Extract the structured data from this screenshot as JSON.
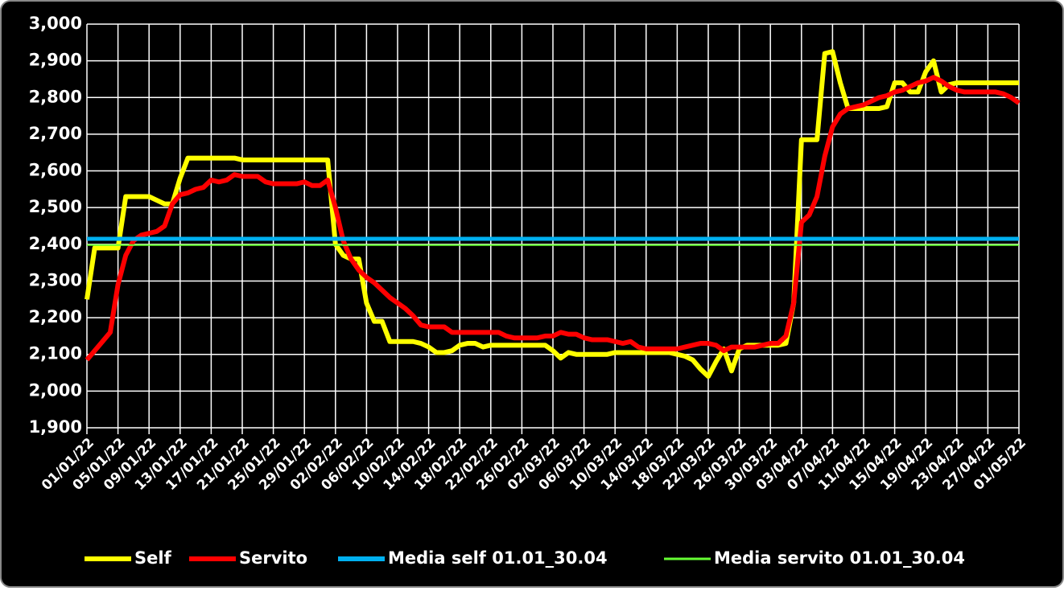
{
  "chart_data": {
    "type": "line",
    "categories": [
      "01/01/22",
      null,
      null,
      null,
      "05/01/22",
      null,
      null,
      null,
      "09/01/22",
      null,
      null,
      null,
      "13/01/22",
      null,
      null,
      null,
      "17/01/22",
      null,
      null,
      null,
      "21/01/22",
      null,
      null,
      null,
      "25/01/22",
      null,
      null,
      null,
      "29/01/22",
      null,
      null,
      null,
      "02/02/22",
      null,
      null,
      null,
      "06/02/22",
      null,
      null,
      null,
      "10/02/22",
      null,
      null,
      null,
      "14/02/22",
      null,
      null,
      null,
      "18/02/22",
      null,
      null,
      null,
      "22/02/22",
      null,
      null,
      null,
      "26/02/22",
      null,
      null,
      null,
      "02/03/22",
      null,
      null,
      null,
      "06/03/22",
      null,
      null,
      null,
      "10/03/22",
      null,
      null,
      null,
      "14/03/22",
      null,
      null,
      null,
      "18/03/22",
      null,
      null,
      null,
      "22/03/22",
      null,
      null,
      null,
      "26/03/22",
      null,
      null,
      null,
      "30/03/22",
      null,
      null,
      null,
      "03/04/22",
      null,
      null,
      null,
      "07/04/22",
      null,
      null,
      null,
      "11/04/22",
      null,
      null,
      null,
      "15/04/22",
      null,
      null,
      null,
      "19/04/22",
      null,
      null,
      null,
      "23/04/22",
      null,
      null,
      null,
      "27/04/22",
      null,
      null,
      null,
      "01/05/22"
    ],
    "series": [
      {
        "name": "Self",
        "color": "#ffff00",
        "values": [
          2.25,
          2.39,
          2.39,
          2.39,
          2.39,
          2.53,
          2.53,
          2.53,
          2.53,
          2.52,
          2.51,
          2.51,
          2.58,
          2.635,
          2.635,
          2.635,
          2.635,
          2.635,
          2.635,
          2.635,
          2.63,
          2.63,
          2.63,
          2.63,
          2.63,
          2.63,
          2.63,
          2.63,
          2.63,
          2.63,
          2.63,
          2.63,
          2.4,
          2.37,
          2.36,
          2.36,
          2.24,
          2.19,
          2.19,
          2.135,
          2.135,
          2.135,
          2.135,
          2.13,
          2.12,
          2.105,
          2.105,
          2.11,
          2.125,
          2.13,
          2.13,
          2.12,
          2.125,
          2.125,
          2.125,
          2.125,
          2.125,
          2.125,
          2.125,
          2.125,
          2.11,
          2.09,
          2.105,
          2.1,
          2.1,
          2.1,
          2.1,
          2.1,
          2.105,
          2.105,
          2.105,
          2.105,
          2.105,
          2.105,
          2.105,
          2.105,
          2.1,
          2.095,
          2.085,
          2.06,
          2.04,
          2.08,
          2.115,
          2.055,
          2.115,
          2.125,
          2.125,
          2.125,
          2.125,
          2.125,
          2.13,
          2.24,
          2.685,
          2.685,
          2.685,
          2.92,
          2.925,
          2.84,
          2.77,
          2.77,
          2.77,
          2.77,
          2.77,
          2.775,
          2.84,
          2.84,
          2.815,
          2.815,
          2.87,
          2.9,
          2.815,
          2.835,
          2.84,
          2.84,
          2.84,
          2.84,
          2.84,
          2.84,
          2.84,
          2.84,
          2.84
        ]
      },
      {
        "name": "Servito",
        "color": "#ff0000",
        "values": [
          2.085,
          2.11,
          2.135,
          2.16,
          2.29,
          2.37,
          2.41,
          2.425,
          2.43,
          2.435,
          2.45,
          2.51,
          2.535,
          2.54,
          2.55,
          2.555,
          2.575,
          2.57,
          2.575,
          2.59,
          2.585,
          2.585,
          2.585,
          2.57,
          2.565,
          2.565,
          2.565,
          2.565,
          2.57,
          2.56,
          2.56,
          2.575,
          2.5,
          2.41,
          2.36,
          2.33,
          2.31,
          2.295,
          2.275,
          2.255,
          2.24,
          2.225,
          2.205,
          2.18,
          2.175,
          2.175,
          2.175,
          2.16,
          2.16,
          2.16,
          2.16,
          2.16,
          2.16,
          2.16,
          2.15,
          2.145,
          2.145,
          2.145,
          2.145,
          2.15,
          2.15,
          2.16,
          2.155,
          2.155,
          2.145,
          2.14,
          2.14,
          2.14,
          2.135,
          2.13,
          2.135,
          2.12,
          2.115,
          2.115,
          2.115,
          2.115,
          2.115,
          2.12,
          2.125,
          2.13,
          2.13,
          2.125,
          2.11,
          2.12,
          2.12,
          2.12,
          2.12,
          2.125,
          2.13,
          2.13,
          2.15,
          2.24,
          2.46,
          2.48,
          2.53,
          2.64,
          2.72,
          2.755,
          2.77,
          2.775,
          2.78,
          2.79,
          2.8,
          2.805,
          2.815,
          2.82,
          2.83,
          2.84,
          2.845,
          2.855,
          2.845,
          2.83,
          2.82,
          2.815,
          2.815,
          2.815,
          2.815,
          2.815,
          2.81,
          2.8,
          2.785
        ]
      },
      {
        "name": "Media self 01.01_30.04",
        "color": "#00b0f0",
        "value": 2.415
      },
      {
        "name": "Media servito 01.01_30.04",
        "color": "#66ff33",
        "value": 2.398
      }
    ],
    "ylim": [
      1.9,
      3.0
    ],
    "yticks": [
      {
        "value": 1.9,
        "label": "1,900"
      },
      {
        "value": 2.0,
        "label": "2,000"
      },
      {
        "value": 2.1,
        "label": "2,100"
      },
      {
        "value": 2.2,
        "label": "2,200"
      },
      {
        "value": 2.3,
        "label": "2,300"
      },
      {
        "value": 2.4,
        "label": "2,400"
      },
      {
        "value": 2.5,
        "label": "2,500"
      },
      {
        "value": 2.6,
        "label": "2,600"
      },
      {
        "value": 2.7,
        "label": "2,700"
      },
      {
        "value": 2.8,
        "label": "2,800"
      },
      {
        "value": 2.9,
        "label": "2,900"
      },
      {
        "value": 3.0,
        "label": "3,000"
      }
    ],
    "grid": true,
    "legend": "bottom"
  }
}
